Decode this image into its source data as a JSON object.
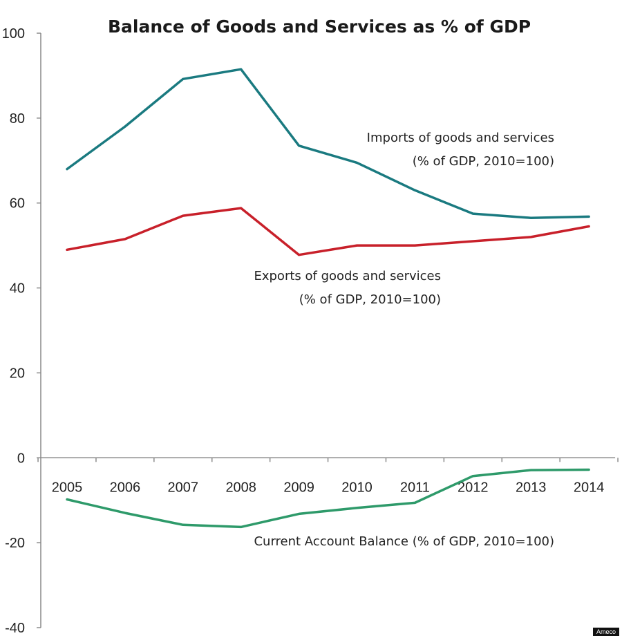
{
  "chart_data": {
    "type": "line",
    "title": "Balance of Goods and Services as % of GDP",
    "x": [
      2005,
      2006,
      2007,
      2008,
      2009,
      2010,
      2011,
      2012,
      2013,
      2014
    ],
    "x_labels": [
      "2005",
      "2006",
      "2007",
      "2008",
      "2009",
      "2010",
      "2011",
      "2012",
      "2013",
      "2014"
    ],
    "ylim": [
      -40,
      100
    ],
    "yticks": [
      100,
      80,
      60,
      40,
      20,
      0,
      -20,
      -40
    ],
    "ytick_labels": [
      "100",
      "80",
      "60",
      "40",
      "20",
      "0",
      "-20",
      "-40"
    ],
    "series": [
      {
        "name": "Imports of goods and services",
        "label_lines": [
          "Imports of goods and services",
          "(% of GDP, 2010=100)"
        ],
        "color": "#1a7a80",
        "values": [
          68,
          78,
          89.2,
          91.5,
          73.5,
          69.5,
          63,
          57.5,
          56.5,
          56.8
        ]
      },
      {
        "name": "Exports of goods and services",
        "label_lines": [
          "Exports of goods and services",
          "(% of GDP, 2010=100)"
        ],
        "color": "#c8202a",
        "values": [
          49,
          51.5,
          57,
          58.8,
          47.8,
          50,
          50,
          51,
          52,
          54.5
        ]
      },
      {
        "name": "Current Account Balance",
        "label_lines": [
          "Current Account Balance (% of GDP, 2010=100)"
        ],
        "color": "#2e9a6a",
        "values": [
          -9.8,
          -13,
          -15.8,
          -16.3,
          -13.2,
          -11.8,
          -10.6,
          -4.3,
          -2.9,
          -2.8
        ]
      }
    ],
    "source": "Ameco"
  }
}
